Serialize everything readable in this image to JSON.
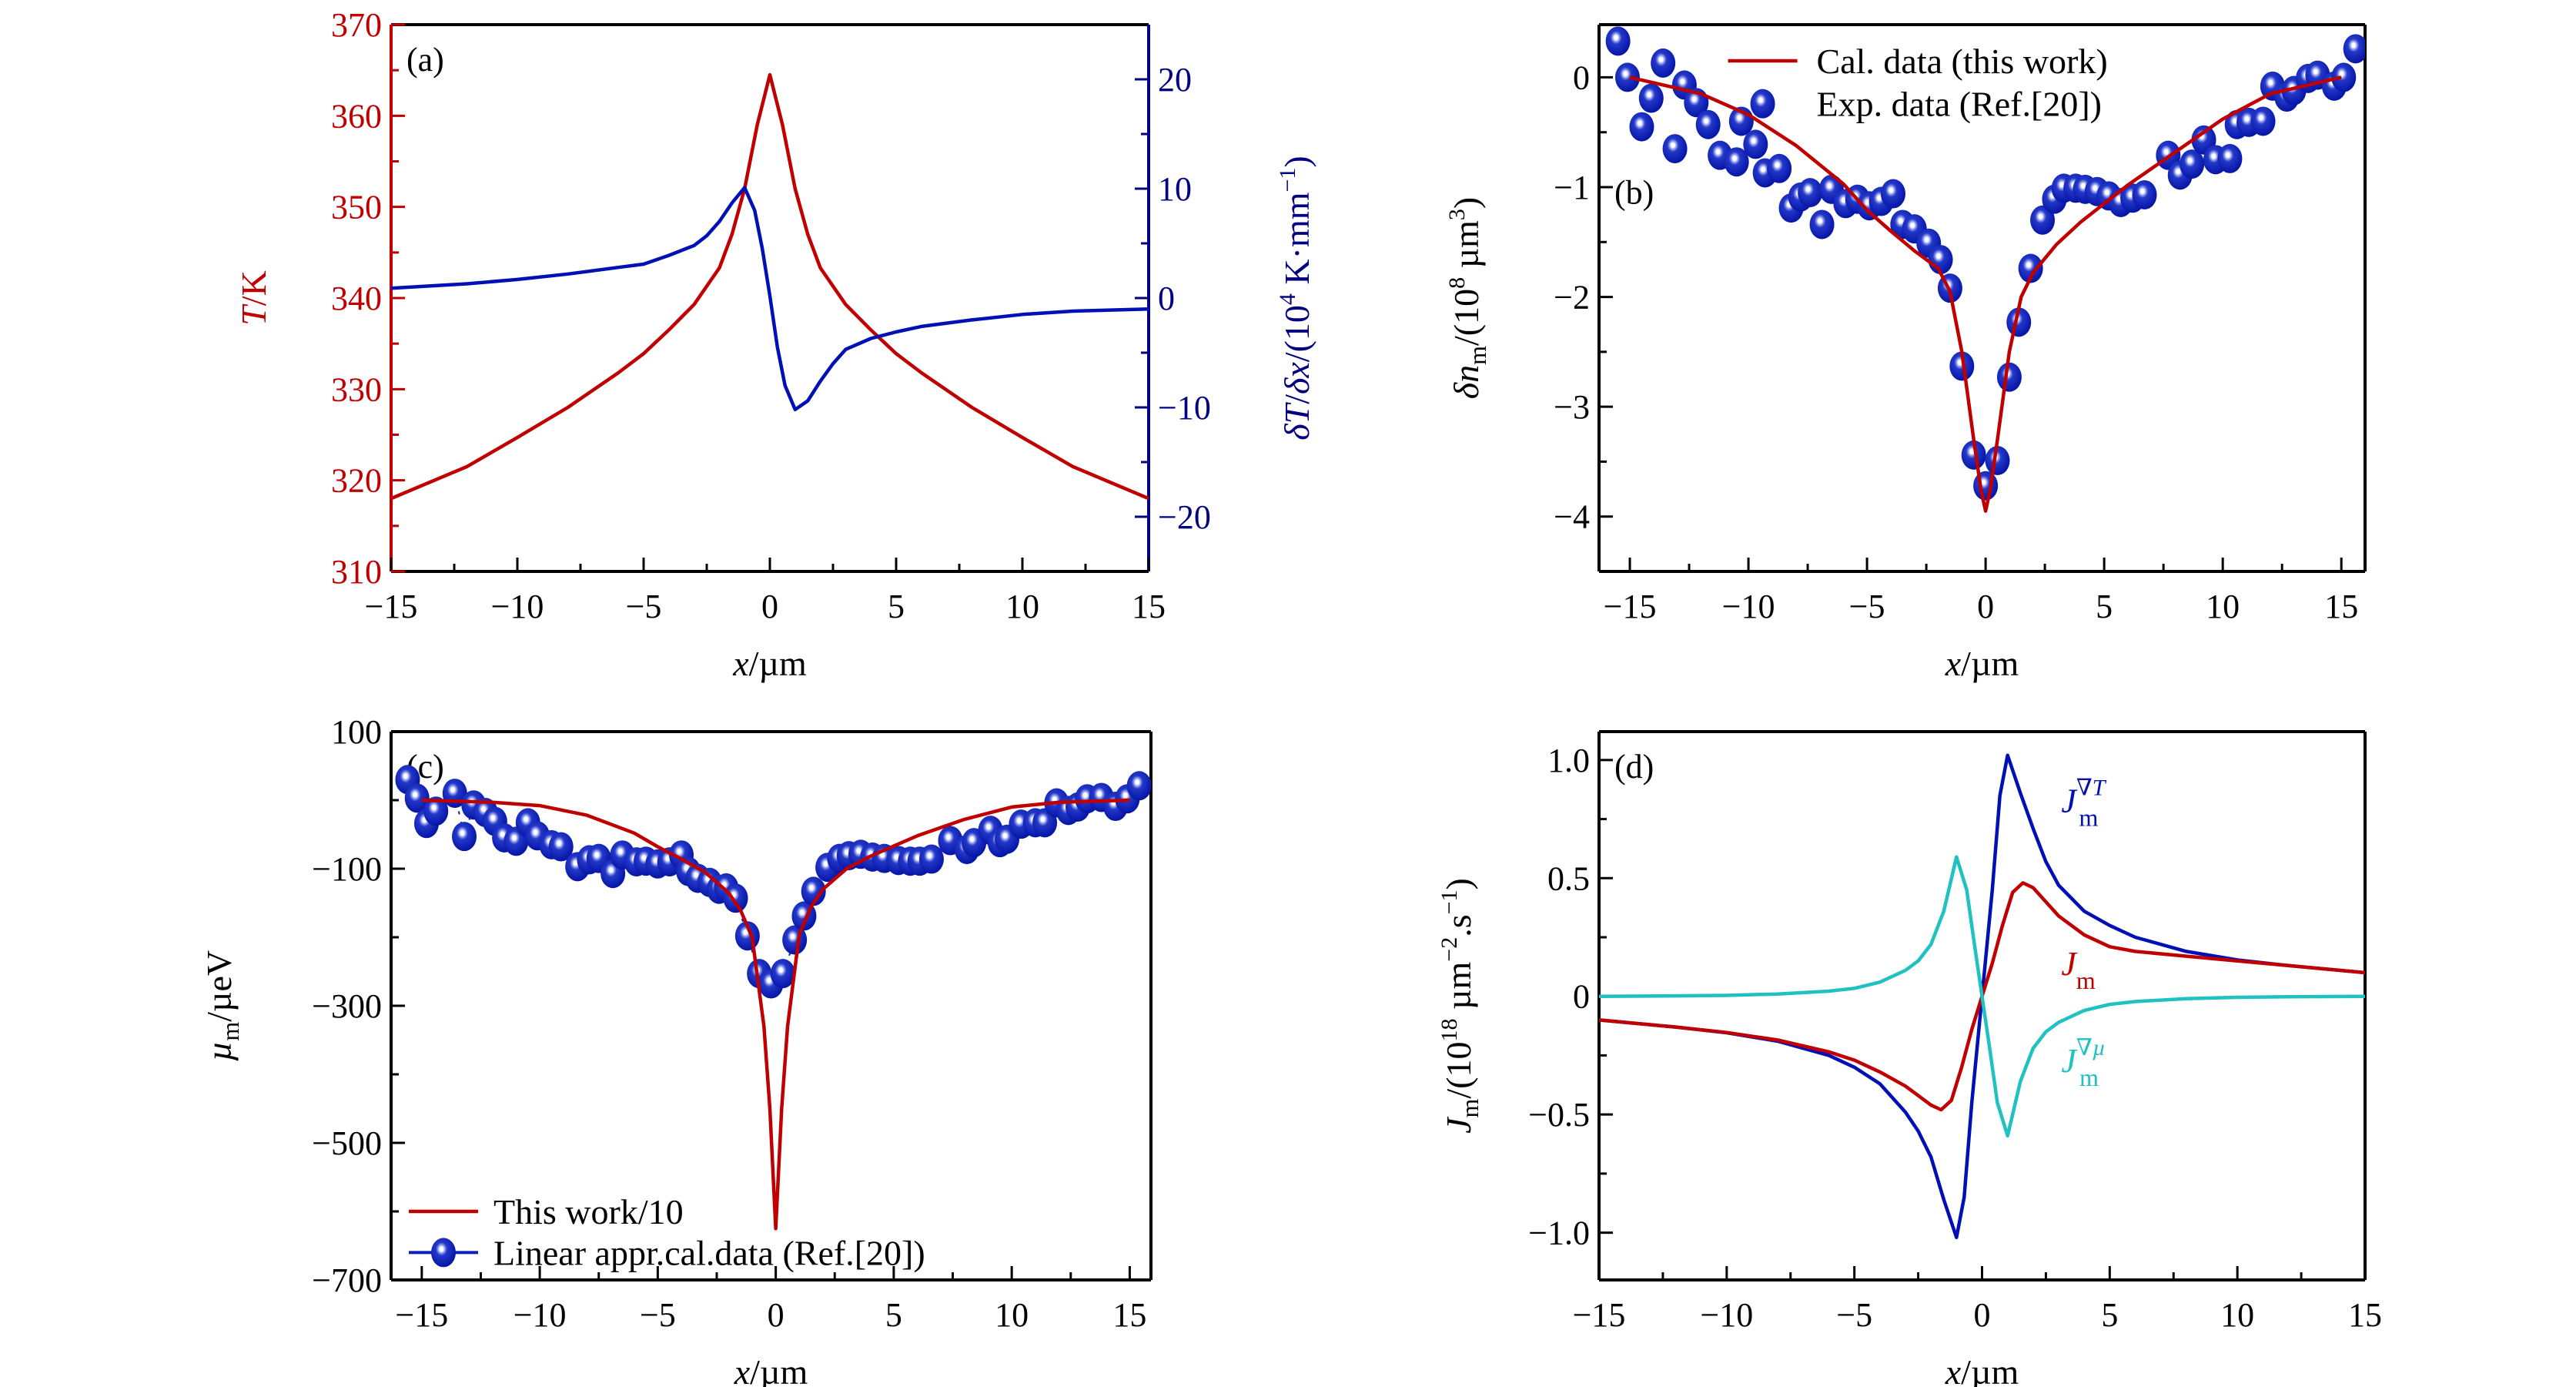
{
  "figure": {
    "panels": [
      "(a)",
      "(b)",
      "(c)",
      "(d)"
    ]
  },
  "colors": {
    "red": "#c00000",
    "blue": "#0010b4",
    "navy": "#000080",
    "cyan": "#1fc1c1",
    "marker": "#0a1fb8",
    "black": "#000000"
  },
  "chart_data": [
    {
      "id": "a",
      "type": "line",
      "panel_label": "(a)",
      "title": "",
      "xlabel": "x/µm",
      "ylabel": "T/K",
      "ylabel_right": "δT/δx/(10⁴ K·mm⁻¹)",
      "xlim": [
        -15,
        15
      ],
      "ylim": [
        310,
        370
      ],
      "ylim_right": [
        -25,
        25
      ],
      "xticks": [
        -15,
        -10,
        -5,
        0,
        5,
        10,
        15
      ],
      "xtick_labels": [
        "−15",
        "−10",
        "−5",
        "0",
        "5",
        "10",
        "15"
      ],
      "yticks": [
        310,
        320,
        330,
        340,
        350,
        360,
        370
      ],
      "ytick_labels": [
        "310",
        "320",
        "330",
        "340",
        "350",
        "360",
        "370"
      ],
      "yticks_right": [
        -20,
        -10,
        0,
        10,
        20
      ],
      "ytick_labels_right": [
        "−20",
        "−10",
        "0",
        "10",
        "20"
      ],
      "grid": false,
      "series": [
        {
          "name": "T",
          "axis": "left",
          "color": "#c00000",
          "x": [
            -15,
            -12,
            -10,
            -8,
            -6,
            -5,
            -4,
            -3,
            -2,
            -1.5,
            -1,
            -0.5,
            0,
            0.5,
            1,
            1.5,
            2,
            3,
            4,
            5,
            6,
            8,
            10,
            12,
            15
          ],
          "y": [
            318.0,
            321.5,
            324.7,
            328.0,
            331.8,
            333.9,
            336.5,
            339.3,
            343.3,
            347.0,
            352.0,
            359.0,
            364.5,
            359.0,
            352.0,
            347.0,
            343.3,
            339.3,
            336.5,
            333.9,
            331.8,
            328.0,
            324.7,
            321.5,
            318.0
          ]
        },
        {
          "name": "dT/dx",
          "axis": "right",
          "color": "#0010b4",
          "x": [
            -15,
            -12,
            -10,
            -8,
            -6,
            -5,
            -4,
            -3,
            -2.5,
            -2,
            -1.5,
            -1,
            -0.6,
            -0.3,
            0,
            0.3,
            0.6,
            1,
            1.5,
            2,
            2.5,
            3,
            4,
            5,
            6,
            8,
            10,
            12,
            15
          ],
          "y": [
            0.9,
            1.3,
            1.7,
            2.2,
            2.8,
            3.1,
            3.9,
            4.8,
            5.7,
            7.0,
            8.7,
            10.1,
            8.0,
            4.5,
            0.2,
            -4.5,
            -8.0,
            -10.2,
            -9.4,
            -7.6,
            -6.0,
            -4.7,
            -3.7,
            -3.1,
            -2.6,
            -2.0,
            -1.5,
            -1.2,
            -1.0
          ]
        }
      ]
    },
    {
      "id": "b",
      "type": "scatter",
      "panel_label": "(b)",
      "title": "",
      "xlabel": "x/µm",
      "ylabel": "δn_m/(10⁸ µm³)",
      "xlim": [
        -16.3,
        16.0
      ],
      "ylim": [
        -4.5,
        0.48
      ],
      "xticks": [
        -15,
        -10,
        -5,
        0,
        5,
        10,
        15
      ],
      "xtick_labels": [
        "−15",
        "−10",
        "−5",
        "0",
        "5",
        "10",
        "15"
      ],
      "yticks": [
        -4,
        -3,
        -2,
        -1,
        0
      ],
      "ytick_labels": [
        "−4",
        "−3",
        "−2",
        "−1",
        "0"
      ],
      "grid": false,
      "legend": {
        "position": "top-center",
        "entries": [
          "Cal. data (this work)",
          "Exp. data (Ref.[20])"
        ]
      },
      "series": [
        {
          "name": "Cal. data (this work)",
          "kind": "line",
          "color": "#c00000",
          "x": [
            -15,
            -12,
            -10,
            -8,
            -6,
            -5,
            -4,
            -3,
            -2,
            -1.5,
            -1,
            -0.5,
            -0.2,
            0,
            0.2,
            0.5,
            1,
            1.5,
            2,
            3,
            4,
            5,
            6,
            8,
            10,
            12,
            15
          ],
          "y": [
            0,
            -0.15,
            -0.34,
            -0.62,
            -0.97,
            -1.21,
            -1.4,
            -1.58,
            -1.74,
            -1.95,
            -2.5,
            -3.3,
            -3.75,
            -3.95,
            -3.75,
            -3.3,
            -2.5,
            -2.0,
            -1.78,
            -1.52,
            -1.32,
            -1.15,
            -0.98,
            -0.68,
            -0.38,
            -0.15,
            0
          ]
        },
        {
          "name": "Exp. data (Ref.[20])",
          "kind": "marker",
          "color": "#0a1fb8",
          "x": [
            -15.5,
            -15.1,
            -14.5,
            -14.1,
            -13.6,
            -13.1,
            -12.7,
            -12.2,
            -11.7,
            -11.2,
            -10.5,
            -10.3,
            -9.7,
            -9.3,
            -8.7,
            -8.2,
            -7.8,
            -7.4,
            -6.9,
            -6.5,
            -5.9,
            -5.4,
            -4.9,
            -4.4,
            -3.9,
            -3.5,
            -3.0,
            -2.4,
            -1.9,
            -1.5,
            -1.0,
            -0.5,
            0,
            0.5,
            1.0,
            1.4,
            1.9,
            2.4,
            2.9,
            3.3,
            3.8,
            4.2,
            4.7,
            5.2,
            5.7,
            6.2,
            6.7,
            7.7,
            8.2,
            8.7,
            9.2,
            9.7,
            10.3,
            10.6,
            11.1,
            11.7,
            12.1,
            12.7,
            13.0,
            13.6,
            14.0,
            14.7,
            15.1,
            15.6
          ],
          "y": [
            0.33,
            0,
            -0.45,
            -0.19,
            0.13,
            -0.65,
            -0.07,
            -0.23,
            -0.43,
            -0.71,
            -0.77,
            -0.4,
            -0.61,
            -0.87,
            -0.83,
            -1.19,
            -1.09,
            -1.05,
            -1.34,
            -1.02,
            -1.15,
            -1.11,
            -1.17,
            -1.13,
            -1.06,
            -1.34,
            -1.38,
            -1.51,
            -1.66,
            -1.92,
            -2.63,
            -3.44,
            -3.72,
            -3.49,
            -2.73,
            -2.23,
            -1.74,
            -1.3,
            -1.11,
            -1.01,
            -1.01,
            -1.02,
            -1.04,
            -1.08,
            -1.14,
            -1.1,
            -1.07,
            -0.71,
            -0.89,
            -0.79,
            -0.57,
            -0.75,
            -0.74,
            -0.43,
            -0.41,
            -0.4,
            -0.08,
            -0.18,
            -0.12,
            -0.01,
            0.02,
            -0.08,
            0,
            0.26
          ]
        }
      ]
    },
    {
      "id": "c",
      "type": "scatter",
      "panel_label": "(c)",
      "title": "",
      "xlabel": "x/µm",
      "ylabel": "µ_m/µeV",
      "xlim": [
        -16.3,
        15.9
      ],
      "ylim": [
        -700,
        100
      ],
      "xticks": [
        -15,
        -10,
        -5,
        0,
        5,
        10,
        15
      ],
      "xtick_labels": [
        "−15",
        "−10",
        "−5",
        "0",
        "5",
        "10",
        "15"
      ],
      "yticks": [
        -700,
        -500,
        -300,
        -100,
        100
      ],
      "ytick_labels": [
        "−700",
        "−500",
        "−300",
        "−100",
        "100"
      ],
      "yticks_minor": [
        -600,
        -400,
        -200,
        0
      ],
      "grid": false,
      "legend": {
        "position": "bottom-left",
        "entries": [
          "This work/10",
          "Linear appr.cal.data (Ref.[20])"
        ]
      },
      "series": [
        {
          "name": "This work/10",
          "kind": "line",
          "color": "#c00000",
          "x": [
            -15,
            -12,
            -10,
            -8,
            -6,
            -5,
            -4,
            -3,
            -2,
            -1.5,
            -1,
            -0.5,
            -0.25,
            0,
            0.25,
            0.5,
            1,
            1.5,
            2,
            3,
            4,
            5,
            6,
            8,
            10,
            12,
            15
          ],
          "y": [
            0,
            -3,
            -8,
            -22,
            -48,
            -68,
            -86,
            -105,
            -135,
            -160,
            -200,
            -330,
            -450,
            -625,
            -450,
            -330,
            -195,
            -155,
            -130,
            -100,
            -82,
            -67,
            -52,
            -28,
            -10,
            -3,
            0
          ]
        },
        {
          "name": "Linear appr.cal.data (Ref.[20])",
          "kind": "marker+line",
          "color": "#0a1fb8",
          "x": [
            -15.6,
            -15.2,
            -14.8,
            -14.4,
            -13.6,
            -13.2,
            -12.8,
            -12.3,
            -11.9,
            -11.5,
            -11.0,
            -10.5,
            -10.1,
            -9.5,
            -9.1,
            -8.4,
            -7.9,
            -7.5,
            -6.9,
            -6.5,
            -5.9,
            -5.5,
            -5.0,
            -4.5,
            -4.0,
            -3.7,
            -3.3,
            -2.8,
            -2.4,
            -2.1,
            -1.7,
            -1.2,
            -0.7,
            -0.2,
            0.3,
            0.8,
            1.2,
            1.6,
            2.2,
            2.7,
            3.1,
            3.6,
            4.1,
            4.6,
            5.2,
            5.7,
            6.1,
            6.6,
            7.4,
            8.1,
            8.4,
            9.1,
            9.5,
            9.8,
            10.4,
            11.0,
            11.4,
            11.9,
            12.4,
            12.8,
            13.2,
            13.8,
            14.4,
            14.9,
            15.4
          ],
          "y": [
            30,
            3,
            -34,
            -16,
            10,
            -53,
            -7,
            -18,
            -31,
            -55,
            -60,
            -33,
            -52,
            -65,
            -68,
            -97,
            -87,
            -85,
            -107,
            -80,
            -90,
            -89,
            -93,
            -90,
            -80,
            -104,
            -114,
            -120,
            -130,
            -128,
            -143,
            -198,
            -253,
            -268,
            -253,
            -204,
            -169,
            -133,
            -98,
            -85,
            -81,
            -79,
            -83,
            -85,
            -88,
            -89,
            -89,
            -86,
            -59,
            -72,
            -62,
            -44,
            -62,
            -57,
            -35,
            -33,
            -33,
            -4,
            -15,
            -10,
            2,
            4,
            -9,
            2,
            21
          ]
        }
      ]
    },
    {
      "id": "d",
      "type": "line",
      "panel_label": "(d)",
      "title": "",
      "xlabel": "x/µm",
      "ylabel": "J_m/(10¹⁸ µm⁻².s⁻¹)",
      "xlim": [
        -15,
        15
      ],
      "ylim": [
        -1.2,
        1.12
      ],
      "xticks": [
        -15,
        -10,
        -5,
        0,
        5,
        10,
        15
      ],
      "xtick_labels": [
        "−15",
        "−10",
        "−5",
        "0",
        "5",
        "10",
        "15"
      ],
      "yticks": [
        -1.0,
        -0.5,
        0,
        0.5,
        1.0
      ],
      "ytick_labels": [
        "−1.0",
        "−0.5",
        "0",
        "0.5",
        "1.0"
      ],
      "grid": false,
      "annotations": [
        {
          "text": "J_m^∇T",
          "main": "J",
          "sub": "m",
          "sup": "∇T",
          "color": "#0010b4",
          "x": 3.1,
          "y": 0.78
        },
        {
          "text": "J_m",
          "main": "J",
          "sub": "m",
          "sup": "",
          "color": "#c00000",
          "x": 3.1,
          "y": 0.09
        },
        {
          "text": "J_m^∇µ",
          "main": "J",
          "sub": "m",
          "sup": "∇µ",
          "color": "#1fc1c1",
          "x": 3.1,
          "y": -0.32
        }
      ],
      "series": [
        {
          "name": "J_m^∇T",
          "color": "#0010b4",
          "x": [
            -15,
            -12,
            -10,
            -8,
            -6,
            -5,
            -4,
            -3,
            -2.5,
            -2,
            -1.5,
            -1,
            -0.7,
            -0.4,
            0,
            0.4,
            0.7,
            1,
            1.5,
            2,
            2.5,
            3,
            4,
            5,
            6,
            8,
            10,
            12,
            15
          ],
          "y": [
            -0.1,
            -0.13,
            -0.154,
            -0.19,
            -0.25,
            -0.3,
            -0.37,
            -0.49,
            -0.57,
            -0.68,
            -0.86,
            -1.02,
            -0.85,
            -0.45,
            0,
            0.45,
            0.85,
            1.02,
            0.86,
            0.71,
            0.57,
            0.47,
            0.36,
            0.3,
            0.25,
            0.19,
            0.154,
            0.13,
            0.1
          ]
        },
        {
          "name": "J_m",
          "color": "#c00000",
          "x": [
            -15,
            -12,
            -10,
            -8,
            -6,
            -5,
            -4,
            -3,
            -2.5,
            -2,
            -1.6,
            -1.2,
            -0.8,
            -0.4,
            0,
            0.4,
            0.8,
            1.2,
            1.6,
            2,
            2.5,
            3,
            4,
            5,
            6,
            8,
            10,
            12,
            15
          ],
          "y": [
            -0.1,
            -0.13,
            -0.153,
            -0.185,
            -0.235,
            -0.27,
            -0.32,
            -0.38,
            -0.42,
            -0.46,
            -0.48,
            -0.44,
            -0.3,
            -0.14,
            0,
            0.14,
            0.3,
            0.44,
            0.48,
            0.46,
            0.4,
            0.34,
            0.26,
            0.21,
            0.19,
            0.17,
            0.15,
            0.13,
            0.1
          ]
        },
        {
          "name": "J_m^∇µ",
          "color": "#1fc1c1",
          "x": [
            -15,
            -12,
            -10,
            -8,
            -6,
            -5,
            -4,
            -3,
            -2.5,
            -2,
            -1.5,
            -1,
            -0.6,
            -0.3,
            0,
            0.3,
            0.6,
            1,
            1.5,
            2,
            2.5,
            3,
            4,
            5,
            6,
            8,
            10,
            12,
            15
          ],
          "y": [
            0,
            0.002,
            0.004,
            0.01,
            0.022,
            0.034,
            0.06,
            0.11,
            0.15,
            0.22,
            0.36,
            0.59,
            0.45,
            0.22,
            0,
            -0.22,
            -0.45,
            -0.59,
            -0.36,
            -0.22,
            -0.15,
            -0.11,
            -0.06,
            -0.034,
            -0.022,
            -0.01,
            -0.004,
            -0.002,
            0
          ]
        }
      ]
    }
  ]
}
